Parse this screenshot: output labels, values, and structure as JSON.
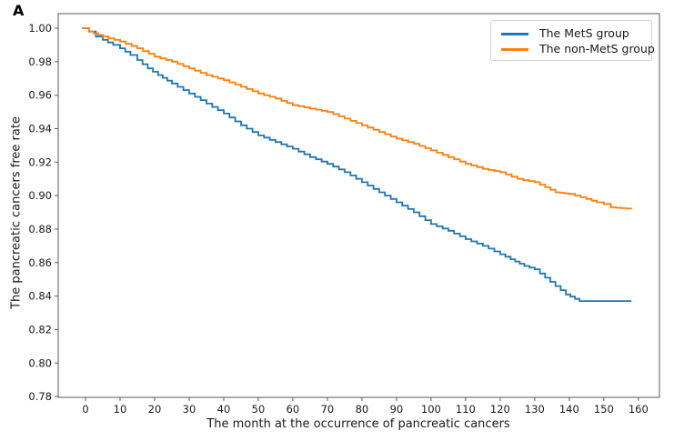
{
  "panel_label": "A",
  "colors": {
    "mets_blue": "#1f77b4",
    "non_mets_orange": "#ff7f0e",
    "spine": "#5a5a5a",
    "text": "#1a1a1a",
    "legend_border": "#d4d4d4",
    "background": "#ffffff"
  },
  "legend": {
    "position": "upper-right",
    "items": [
      {
        "label": "The MetS group",
        "color": "#1f77b4"
      },
      {
        "label": "The non-MetS group",
        "color": "#ff7f0e"
      }
    ]
  },
  "chart_data": {
    "type": "line",
    "subtype": "kaplan-meier-step",
    "title": "",
    "xlabel": "The month at the occurrence of pancreatic cancers",
    "ylabel": "The pancreatic cancers free rate",
    "xlim": [
      -7.9,
      166.1
    ],
    "ylim": [
      0.7795,
      1.0087
    ],
    "xticks": [
      0,
      10,
      20,
      30,
      40,
      50,
      60,
      70,
      80,
      90,
      100,
      110,
      120,
      130,
      140,
      150,
      160
    ],
    "yticks": [
      0.78,
      0.8,
      0.82,
      0.84,
      0.86,
      0.88,
      0.9,
      0.92,
      0.94,
      0.96,
      0.98,
      1.0
    ],
    "grid": false,
    "legend_position": "upper-right",
    "series": [
      {
        "name": "The MetS group",
        "color": "#1f77b4",
        "points": [
          [
            -1,
            1.0
          ],
          [
            1,
            0.998
          ],
          [
            3,
            0.995
          ],
          [
            5,
            0.993
          ],
          [
            8,
            0.99
          ],
          [
            10,
            0.988
          ],
          [
            13,
            0.984
          ],
          [
            15,
            0.981
          ],
          [
            18,
            0.976
          ],
          [
            21,
            0.972
          ],
          [
            25,
            0.967
          ],
          [
            30,
            0.961
          ],
          [
            35,
            0.955
          ],
          [
            40,
            0.949
          ],
          [
            45,
            0.942
          ],
          [
            50,
            0.936
          ],
          [
            55,
            0.932
          ],
          [
            60,
            0.928
          ],
          [
            65,
            0.923
          ],
          [
            70,
            0.919
          ],
          [
            75,
            0.914
          ],
          [
            80,
            0.908
          ],
          [
            85,
            0.902
          ],
          [
            90,
            0.896
          ],
          [
            95,
            0.89
          ],
          [
            100,
            0.883
          ],
          [
            105,
            0.879
          ],
          [
            110,
            0.874
          ],
          [
            115,
            0.87
          ],
          [
            120,
            0.865
          ],
          [
            123,
            0.862
          ],
          [
            127,
            0.858
          ],
          [
            130,
            0.856
          ],
          [
            133,
            0.851
          ],
          [
            136,
            0.846
          ],
          [
            139,
            0.841
          ],
          [
            143,
            0.837
          ],
          [
            158,
            0.837
          ]
        ]
      },
      {
        "name": "The non-MetS group",
        "color": "#ff7f0e",
        "points": [
          [
            -1,
            1.0
          ],
          [
            1,
            0.998
          ],
          [
            5,
            0.995
          ],
          [
            10,
            0.992
          ],
          [
            15,
            0.988
          ],
          [
            20,
            0.983
          ],
          [
            25,
            0.98
          ],
          [
            30,
            0.976
          ],
          [
            35,
            0.972
          ],
          [
            40,
            0.969
          ],
          [
            45,
            0.965
          ],
          [
            50,
            0.961
          ],
          [
            55,
            0.958
          ],
          [
            60,
            0.954
          ],
          [
            65,
            0.952
          ],
          [
            70,
            0.95
          ],
          [
            75,
            0.946
          ],
          [
            80,
            0.942
          ],
          [
            85,
            0.938
          ],
          [
            90,
            0.934
          ],
          [
            95,
            0.931
          ],
          [
            100,
            0.927
          ],
          [
            105,
            0.923
          ],
          [
            110,
            0.919
          ],
          [
            115,
            0.916
          ],
          [
            120,
            0.914
          ],
          [
            125,
            0.91
          ],
          [
            130,
            0.908
          ],
          [
            136,
            0.902
          ],
          [
            140,
            0.901
          ],
          [
            145,
            0.898
          ],
          [
            148,
            0.896
          ],
          [
            150,
            0.895
          ],
          [
            152,
            0.893
          ],
          [
            158,
            0.892
          ]
        ]
      }
    ]
  }
}
